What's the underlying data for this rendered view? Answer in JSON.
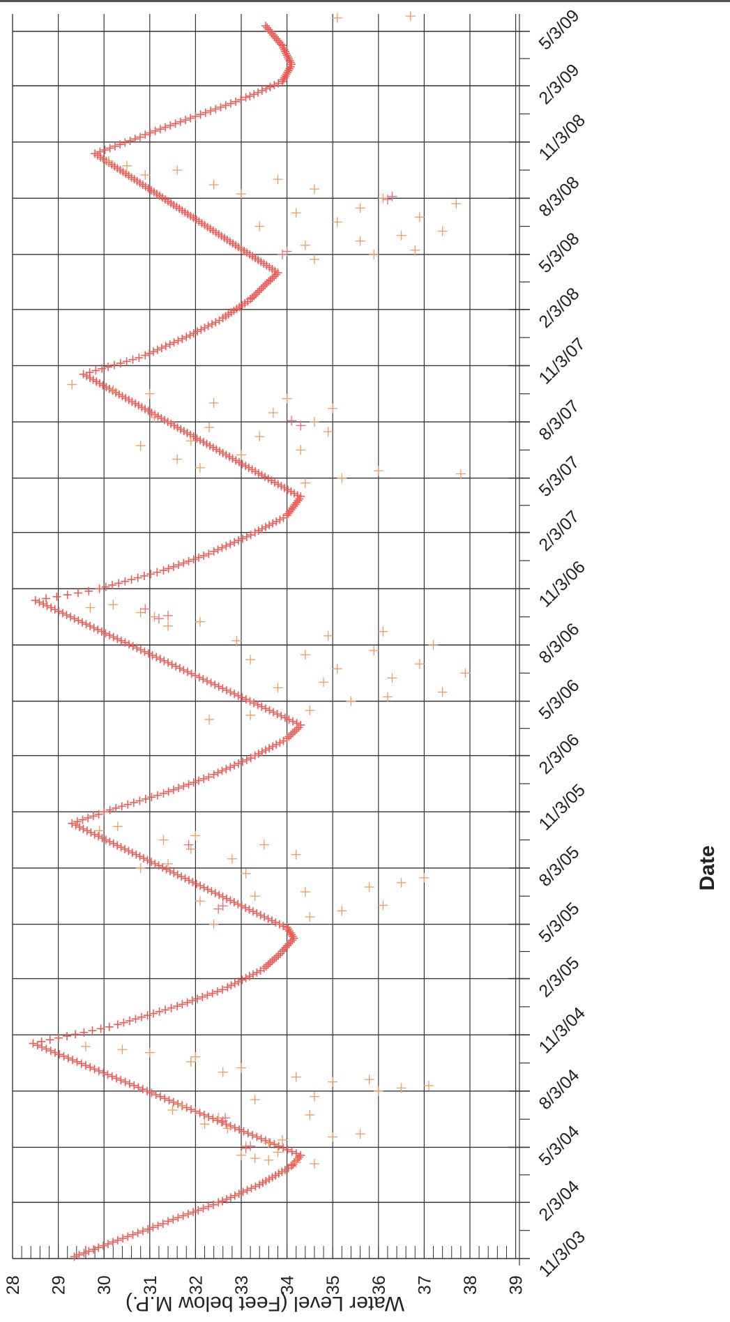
{
  "chart_data": {
    "type": "scatter",
    "title": "",
    "xlabel": "Date",
    "ylabel": "Water Level (Feet below M.P.)",
    "x_ticks": [
      "11/3/03",
      "2/3/04",
      "5/3/04",
      "8/3/04",
      "11/3/04",
      "2/3/05",
      "5/3/05",
      "8/3/05",
      "11/3/05",
      "2/3/06",
      "5/3/06",
      "8/3/06",
      "11/3/06",
      "2/3/07",
      "5/3/07",
      "8/3/07",
      "11/3/07",
      "2/3/08",
      "5/3/08",
      "8/3/08",
      "11/3/08",
      "2/3/09",
      "5/3/09"
    ],
    "xlim": [
      "2003-11-03",
      "2009-06-18"
    ],
    "y_ticks": [
      "28",
      "29",
      "30",
      "31",
      "32",
      "33",
      "34",
      "35",
      "36",
      "37",
      "38",
      "39"
    ],
    "ylim": [
      28,
      39
    ],
    "grid": true,
    "marker": "plus",
    "colors": {
      "trend": "#ee5a52",
      "scatter": "#f39a5c",
      "highlight": "#f06a7a"
    },
    "series": [
      {
        "style": "trend",
        "points": [
          [
            "2003-11-06",
            29.35
          ],
          [
            "2003-12-03",
            30.3
          ],
          [
            "2004-01-03",
            31.4
          ],
          [
            "2004-02-03",
            32.5
          ],
          [
            "2004-03-03",
            33.4
          ],
          [
            "2004-04-03",
            34.1
          ],
          [
            "2004-04-20",
            34.3
          ],
          [
            "2004-10-20",
            28.45
          ],
          [
            "2004-11-20",
            30.3
          ],
          [
            "2004-12-20",
            31.6
          ],
          [
            "2005-01-20",
            32.7
          ],
          [
            "2005-02-20",
            33.5
          ],
          [
            "2005-03-20",
            33.9
          ],
          [
            "2005-04-10",
            34.15
          ],
          [
            "2005-04-28",
            34.0
          ],
          [
            "2005-10-15",
            29.3
          ],
          [
            "2005-11-03",
            30.0
          ],
          [
            "2005-12-03",
            31.3
          ],
          [
            "2006-01-03",
            32.4
          ],
          [
            "2006-02-03",
            33.3
          ],
          [
            "2006-03-03",
            34.0
          ],
          [
            "2006-03-25",
            34.3
          ],
          [
            "2006-10-15",
            28.5
          ],
          [
            "2006-11-03",
            29.9
          ],
          [
            "2006-12-03",
            31.3
          ],
          [
            "2007-01-03",
            32.4
          ],
          [
            "2007-02-03",
            33.3
          ],
          [
            "2007-03-03",
            34.0
          ],
          [
            "2007-04-03",
            34.3
          ],
          [
            "2007-10-20",
            29.55
          ],
          [
            "2007-11-20",
            30.9
          ],
          [
            "2007-12-20",
            31.8
          ],
          [
            "2008-01-20",
            32.6
          ],
          [
            "2008-02-20",
            33.2
          ],
          [
            "2008-03-20",
            33.6
          ],
          [
            "2008-04-03",
            33.8
          ],
          [
            "2008-10-15",
            29.8
          ],
          [
            "2008-11-15",
            30.9
          ],
          [
            "2008-12-15",
            32.0
          ],
          [
            "2009-01-15",
            33.1
          ],
          [
            "2009-02-10",
            33.9
          ],
          [
            "2009-03-10",
            34.1
          ],
          [
            "2009-04-10",
            33.9
          ],
          [
            "2009-05-15",
            33.5
          ]
        ]
      },
      {
        "style": "scatter",
        "points": [
          [
            "2004-04-06",
            34.6
          ],
          [
            "2004-04-08",
            34.2
          ],
          [
            "2004-04-12",
            33.6
          ],
          [
            "2004-04-15",
            33.3
          ],
          [
            "2004-04-20",
            33.0
          ],
          [
            "2004-04-25",
            33.8
          ],
          [
            "2004-05-05",
            33.1
          ],
          [
            "2004-05-10",
            33.6
          ],
          [
            "2004-05-15",
            33.9
          ],
          [
            "2004-05-20",
            35.0
          ],
          [
            "2004-05-25",
            35.6
          ],
          [
            "2004-06-03",
            32.7
          ],
          [
            "2004-06-10",
            32.2
          ],
          [
            "2004-06-20",
            32.5
          ],
          [
            "2004-06-25",
            34.5
          ],
          [
            "2004-07-03",
            31.5
          ],
          [
            "2004-07-10",
            31.7
          ],
          [
            "2004-07-20",
            33.3
          ],
          [
            "2004-07-25",
            34.6
          ],
          [
            "2004-08-03",
            36.0
          ],
          [
            "2004-08-08",
            36.5
          ],
          [
            "2004-08-12",
            37.1
          ],
          [
            "2004-08-18",
            35.0
          ],
          [
            "2004-08-22",
            35.8
          ],
          [
            "2004-08-26",
            34.2
          ],
          [
            "2004-09-03",
            32.6
          ],
          [
            "2004-09-10",
            33.0
          ],
          [
            "2004-09-20",
            31.9
          ],
          [
            "2004-09-28",
            32.0
          ],
          [
            "2004-10-05",
            31.0
          ],
          [
            "2004-10-10",
            30.4
          ],
          [
            "2004-10-15",
            29.6
          ],
          [
            "2005-05-03",
            32.4
          ],
          [
            "2005-05-15",
            34.5
          ],
          [
            "2005-05-25",
            35.2
          ],
          [
            "2005-06-03",
            36.1
          ],
          [
            "2005-06-10",
            32.1
          ],
          [
            "2005-06-18",
            33.3
          ],
          [
            "2005-06-25",
            34.4
          ],
          [
            "2005-07-03",
            35.8
          ],
          [
            "2005-07-10",
            36.5
          ],
          [
            "2005-07-18",
            37.0
          ],
          [
            "2005-07-25",
            33.1
          ],
          [
            "2005-08-03",
            30.8
          ],
          [
            "2005-08-10",
            31.4
          ],
          [
            "2005-08-18",
            32.8
          ],
          [
            "2005-08-25",
            34.2
          ],
          [
            "2005-09-03",
            31.9
          ],
          [
            "2005-09-10",
            33.5
          ],
          [
            "2005-09-18",
            31.3
          ],
          [
            "2005-09-25",
            32.0
          ],
          [
            "2005-10-03",
            29.9
          ],
          [
            "2005-10-10",
            30.3
          ],
          [
            "2006-04-03",
            32.3
          ],
          [
            "2006-04-10",
            33.2
          ],
          [
            "2006-04-18",
            34.5
          ],
          [
            "2006-05-03",
            35.4
          ],
          [
            "2006-05-10",
            36.2
          ],
          [
            "2006-05-18",
            37.4
          ],
          [
            "2006-05-25",
            33.8
          ],
          [
            "2006-06-03",
            34.8
          ],
          [
            "2006-06-10",
            36.3
          ],
          [
            "2006-06-18",
            37.9
          ],
          [
            "2006-06-25",
            35.1
          ],
          [
            "2006-07-03",
            36.9
          ],
          [
            "2006-07-10",
            33.2
          ],
          [
            "2006-07-18",
            34.4
          ],
          [
            "2006-07-25",
            35.9
          ],
          [
            "2006-08-03",
            37.2
          ],
          [
            "2006-08-10",
            32.9
          ],
          [
            "2006-08-18",
            34.9
          ],
          [
            "2006-08-25",
            36.1
          ],
          [
            "2006-09-03",
            31.4
          ],
          [
            "2006-09-10",
            32.1
          ],
          [
            "2006-09-18",
            31.1
          ],
          [
            "2006-09-25",
            30.8
          ],
          [
            "2006-10-03",
            29.7
          ],
          [
            "2006-10-08",
            30.2
          ],
          [
            "2007-04-25",
            34.4
          ],
          [
            "2007-05-03",
            35.2
          ],
          [
            "2007-05-10",
            37.8
          ],
          [
            "2007-05-15",
            36.0
          ],
          [
            "2007-05-20",
            32.1
          ],
          [
            "2007-06-03",
            31.6
          ],
          [
            "2007-06-10",
            33.0
          ],
          [
            "2007-06-18",
            34.3
          ],
          [
            "2007-06-25",
            30.8
          ],
          [
            "2007-07-03",
            31.9
          ],
          [
            "2007-07-10",
            33.4
          ],
          [
            "2007-07-18",
            34.9
          ],
          [
            "2007-07-25",
            32.3
          ],
          [
            "2007-08-03",
            34.6
          ],
          [
            "2007-08-10",
            31.1
          ],
          [
            "2007-08-18",
            33.7
          ],
          [
            "2007-08-25",
            35.0
          ],
          [
            "2007-09-03",
            32.4
          ],
          [
            "2007-09-10",
            34.0
          ],
          [
            "2007-09-18",
            31.0
          ],
          [
            "2007-09-25",
            30.2
          ],
          [
            "2007-10-03",
            29.3
          ],
          [
            "2008-04-25",
            34.6
          ],
          [
            "2008-05-03",
            35.9
          ],
          [
            "2008-05-10",
            36.8
          ],
          [
            "2008-05-18",
            34.4
          ],
          [
            "2008-05-25",
            35.6
          ],
          [
            "2008-06-03",
            36.5
          ],
          [
            "2008-06-10",
            37.4
          ],
          [
            "2008-06-18",
            33.4
          ],
          [
            "2008-06-25",
            35.1
          ],
          [
            "2008-07-03",
            36.9
          ],
          [
            "2008-07-10",
            34.2
          ],
          [
            "2008-07-18",
            35.6
          ],
          [
            "2008-07-25",
            37.7
          ],
          [
            "2008-08-03",
            36.1
          ],
          [
            "2008-08-10",
            33.0
          ],
          [
            "2008-08-18",
            34.6
          ],
          [
            "2008-08-25",
            32.4
          ],
          [
            "2008-09-03",
            33.8
          ],
          [
            "2008-09-10",
            30.9
          ],
          [
            "2008-09-18",
            31.6
          ],
          [
            "2008-09-25",
            30.5
          ],
          [
            "2008-10-03",
            30.1
          ],
          [
            "2009-05-25",
            35.1
          ],
          [
            "2009-05-28",
            36.7
          ]
        ]
      },
      {
        "style": "highlight",
        "points": [
          [
            "2004-05-01",
            33.1
          ],
          [
            "2004-05-05",
            33.2
          ],
          [
            "2004-06-15",
            32.6
          ],
          [
            "2004-06-20",
            32.65
          ],
          [
            "2005-05-28",
            32.5
          ],
          [
            "2005-06-02",
            32.6
          ],
          [
            "2005-09-10",
            31.85
          ],
          [
            "2006-09-15",
            31.2
          ],
          [
            "2006-09-20",
            31.4
          ],
          [
            "2006-10-01",
            30.9
          ],
          [
            "2007-07-28",
            34.3
          ],
          [
            "2007-08-05",
            34.1
          ],
          [
            "2008-05-03",
            33.9
          ],
          [
            "2008-05-08",
            34.0
          ],
          [
            "2008-08-01",
            36.2
          ],
          [
            "2008-08-06",
            36.3
          ]
        ]
      }
    ]
  }
}
